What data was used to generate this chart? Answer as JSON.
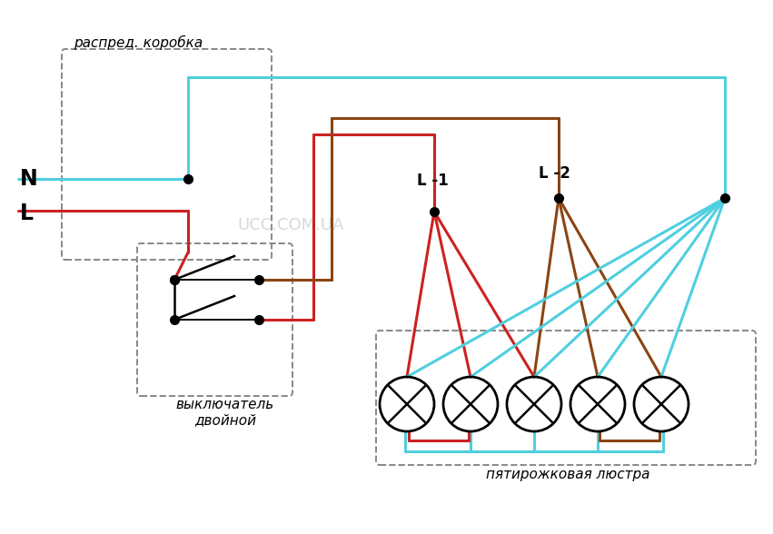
{
  "bg_color": "#ffffff",
  "cyan": "#4fcfdf",
  "red": "#cc2222",
  "brown": "#8B4513",
  "black": "#000000",
  "gray": "#888888",
  "figsize": [
    8.51,
    5.88
  ],
  "dpi": 100,
  "watermark": "UCC.COM.UA",
  "label_N": "N",
  "label_L": "L",
  "label_L1": "L -1",
  "label_L2": "L -2",
  "label_raspred": "распред. коробка",
  "label_vykl1": "выключатель",
  "label_vykl2": "двойной",
  "label_lustra": "пятирожковая люстра"
}
